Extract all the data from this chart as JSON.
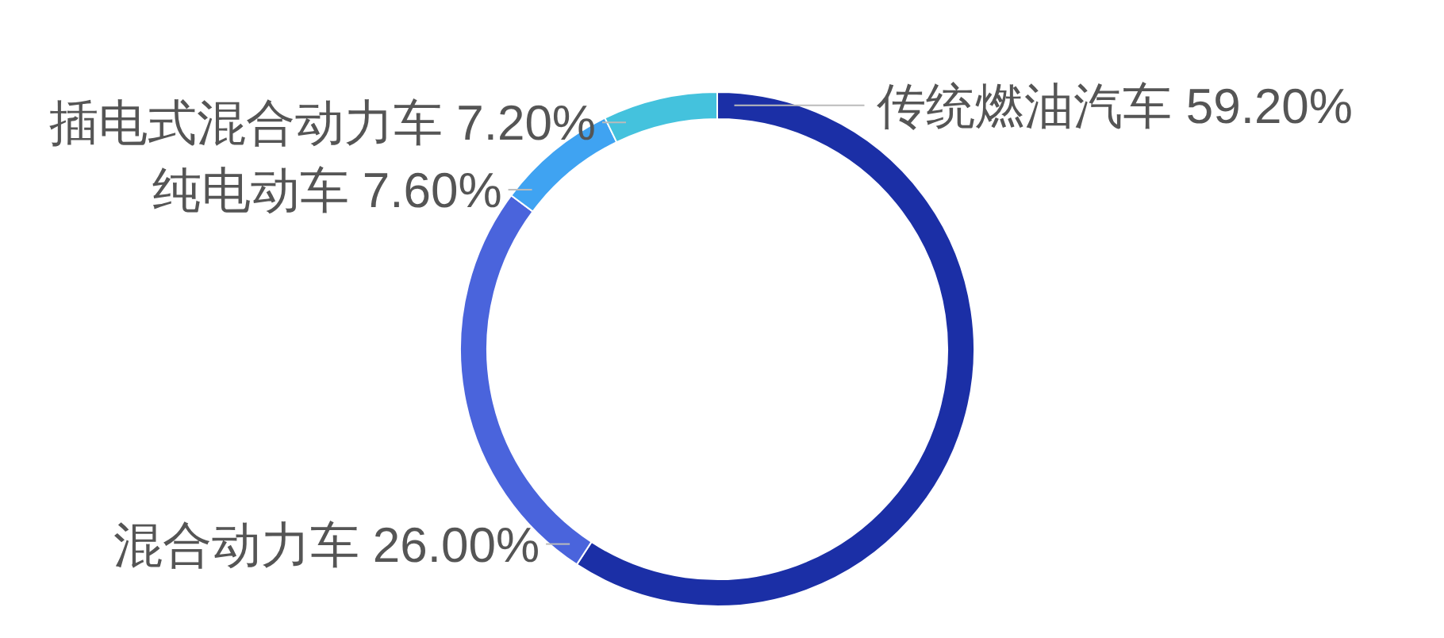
{
  "chart_data": {
    "type": "donut",
    "categories": [
      "传统燃油汽车",
      "混合动力车",
      "纯电动车",
      "插电式混合动力车"
    ],
    "values": [
      59.2,
      26.0,
      7.6,
      7.2
    ],
    "value_labels": [
      "59.20%",
      "26.00%",
      "7.60%",
      "7.20%"
    ],
    "colors": [
      "#1b2fa6",
      "#4a64dc",
      "#3fa3f2",
      "#44c2dd"
    ]
  }
}
